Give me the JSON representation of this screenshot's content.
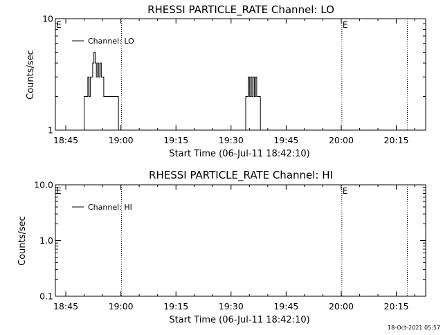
{
  "chart_data": [
    {
      "type": "line",
      "title": "RHESSI PARTICLE_RATE Channel: LO",
      "xlabel": "Start Time (06-Jul-11 18:42:10)",
      "ylabel": "Counts/sec",
      "y_scale": "log",
      "ylim": [
        1,
        10
      ],
      "y_ticks": [
        "1",
        "10"
      ],
      "xlim": [
        "18:42:10",
        "20:23:00"
      ],
      "x_ticks": [
        "18:45",
        "19:00",
        "19:15",
        "19:30",
        "19:45",
        "20:00",
        "20:15"
      ],
      "grid": false,
      "legend_position": "top-left",
      "series": [
        {
          "name": "Channel: LO",
          "color": "#000000",
          "x": [
            "18:49:30",
            "18:49:40",
            "18:50:00",
            "18:50:30",
            "18:51:00",
            "18:51:20",
            "18:51:40",
            "18:52:00",
            "18:52:20",
            "18:52:40",
            "18:53:00",
            "18:53:20",
            "18:53:40",
            "18:54:00",
            "18:54:20",
            "18:54:40",
            "18:55:00",
            "18:55:20",
            "18:55:40",
            "18:56:00",
            "18:56:20",
            "18:56:40",
            "18:57:00",
            "18:57:30",
            "18:58:00",
            "18:58:30",
            "18:59:00",
            "18:59:20",
            "18:59:30",
            "19:00:00",
            "19:33:30",
            "19:34:00",
            "19:34:20",
            "19:34:40",
            "19:35:00",
            "19:35:20",
            "19:35:40",
            "19:36:00",
            "19:36:20",
            "19:36:40",
            "19:37:00",
            "19:37:20",
            "19:37:40",
            "19:38:00",
            "19:38:10",
            "19:38:30"
          ],
          "y": [
            1,
            1,
            2,
            2,
            3,
            2,
            3,
            3,
            4,
            5,
            4,
            3,
            4,
            3,
            4,
            3,
            3,
            2,
            2,
            2,
            2,
            2,
            2,
            2,
            2,
            2,
            2,
            1,
            1,
            1,
            1,
            2,
            2,
            3,
            2,
            3,
            2,
            3,
            2,
            3,
            2,
            2,
            2,
            1,
            1,
            1
          ]
        }
      ],
      "annotations": [
        {
          "text": "E",
          "x": "18:42:10",
          "position": "top"
        },
        {
          "text": "E",
          "x": "20:00:10",
          "position": "top"
        }
      ],
      "vertical_lines": [
        "19:00:10",
        "20:00:10",
        "20:18:00"
      ]
    },
    {
      "type": "line",
      "title": "RHESSI PARTICLE_RATE Channel: HI",
      "xlabel": "Start Time (06-Jul-11 18:42:10)",
      "ylabel": "Counts/sec",
      "y_scale": "log",
      "ylim": [
        0.1,
        10
      ],
      "y_ticks": [
        "0.1",
        "1.0",
        "10.0"
      ],
      "xlim": [
        "18:42:10",
        "20:23:00"
      ],
      "x_ticks": [
        "18:45",
        "19:00",
        "19:15",
        "19:30",
        "19:45",
        "20:00",
        "20:15"
      ],
      "grid": false,
      "legend_position": "top-left",
      "series": [
        {
          "name": "Channel: HI",
          "color": "#000000",
          "x": [],
          "y": []
        }
      ],
      "annotations": [
        {
          "text": "E",
          "x": "18:42:10",
          "position": "top"
        },
        {
          "text": "E",
          "x": "20:00:10",
          "position": "top"
        }
      ],
      "vertical_lines": [
        "19:00:10",
        "20:00:10",
        "20:18:00"
      ]
    }
  ],
  "footer": {
    "timestamp": "18-Oct-2021 05:57"
  }
}
